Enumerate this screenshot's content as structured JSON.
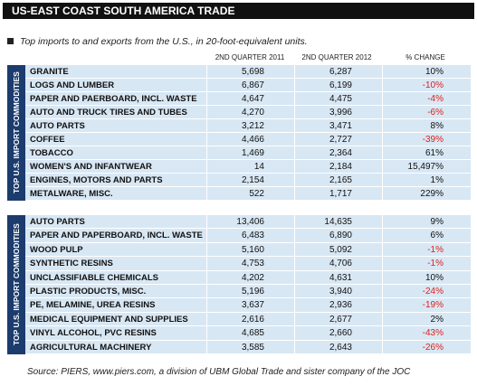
{
  "header": {
    "title": "US-EAST COAST SOUTH AMERICA TRADE",
    "subtitle": "Top imports to and exports from the U.S., in 20-foot-equivalent units."
  },
  "table": {
    "columns": [
      "2ND QUARTER 2011",
      "2ND QUARTER 2012",
      "% CHANGE"
    ],
    "sections": [
      {
        "label": "TOP U.S. IMPORT COMMODITIES",
        "rows": [
          [
            "GRANITE",
            "5,698",
            "6,287",
            "10%"
          ],
          [
            "LOGS AND LUMBER",
            "6,867",
            "6,199",
            "-10%"
          ],
          [
            "PAPER AND PAERBOARD, INCL. WASTE",
            "4,647",
            "4,475",
            "-4%"
          ],
          [
            "AUTO AND TRUCK TIRES AND TUBES",
            "4,270",
            "3,996",
            "-6%"
          ],
          [
            "AUTO PARTS",
            "3,212",
            "3,471",
            "8%"
          ],
          [
            "COFFEE",
            "4,466",
            "2,727",
            "-39%"
          ],
          [
            "TOBACCO",
            "1,469",
            "2,364",
            "61%"
          ],
          [
            "WOMEN'S AND INFANTWEAR",
            "14",
            "2,184",
            "15,497%"
          ],
          [
            "ENGINES, MOTORS AND PARTS",
            "2,154",
            "2,165",
            "1%"
          ],
          [
            "METALWARE, MISC.",
            "522",
            "1,717",
            "229%"
          ]
        ]
      },
      {
        "label": "TOP U.S. IMPORT COMMODITIES",
        "rows": [
          [
            "AUTO PARTS",
            "13,406",
            "14,635",
            "9%"
          ],
          [
            "PAPER AND PAPERBOARD, INCL. WASTE",
            "6,483",
            "6,890",
            "6%"
          ],
          [
            "WOOD PULP",
            "5,160",
            "5,092",
            "-1%"
          ],
          [
            "SYNTHETIC RESINS",
            "4,753",
            "4,706",
            "-1%"
          ],
          [
            "UNCLASSIFIABLE CHEMICALS",
            "4,202",
            "4,631",
            "10%"
          ],
          [
            "PLASTIC PRODUCTS, MISC.",
            "5,196",
            "3,940",
            "-24%"
          ],
          [
            "PE, MELAMINE, UREA RESINS",
            "3,637",
            "2,936",
            "-19%"
          ],
          [
            "MEDICAL EQUIPMENT AND SUPPLIES",
            "2,616",
            "2,677",
            "2%"
          ],
          [
            "VINYL ALCOHOL, PVC RESINS",
            "4,685",
            "2,660",
            "-43%"
          ],
          [
            "AGRICULTURAL MACHINERY",
            "3,585",
            "2,643",
            "-26%"
          ]
        ]
      }
    ]
  },
  "source": "Source: PIERS, www.piers.com, a division of UBM Global Trade and sister company of the JOC"
}
